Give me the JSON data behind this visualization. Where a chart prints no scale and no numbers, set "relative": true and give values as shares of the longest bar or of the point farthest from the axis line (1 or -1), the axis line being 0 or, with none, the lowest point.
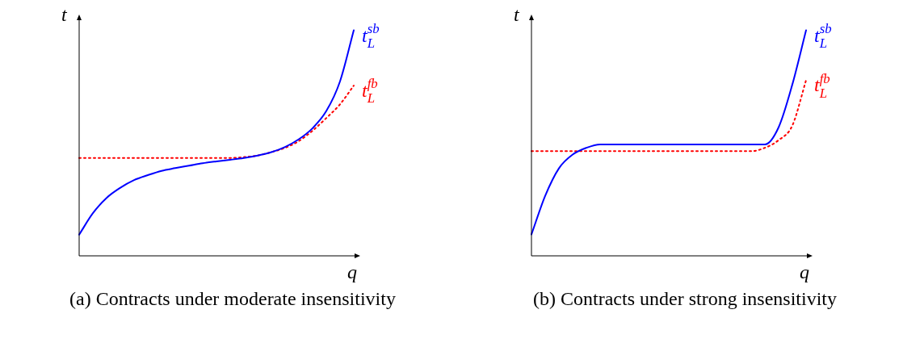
{
  "chart_data": [
    {
      "type": "line",
      "title": "(a) Contracts under moderate insensitivity",
      "xlabel": "q",
      "ylabel": "t",
      "relative": true,
      "legend": false,
      "marker": "none",
      "categories": [
        null,
        null,
        null,
        null,
        null,
        null,
        null,
        null,
        null,
        null,
        null,
        null,
        null,
        null,
        null,
        null,
        null,
        null,
        null,
        null,
        null
      ],
      "series": [
        {
          "name": "t$_{L}$$^{sb}$",
          "color": "#0000ff",
          "line_style": "solid",
          "values": [
            0.094,
            0.189,
            0.257,
            0.302,
            0.336,
            0.358,
            0.377,
            0.389,
            0.4,
            0.411,
            0.419,
            0.426,
            0.434,
            0.445,
            0.46,
            0.483,
            0.517,
            0.566,
            0.642,
            0.774,
            1
          ]
        },
        {
          "name": "t$_{L}$$^{fb}$",
          "color": "#ff0000",
          "line_style": "dotted",
          "values": [
            0.434,
            0.434,
            0.434,
            0.434,
            0.434,
            0.434,
            0.434,
            0.434,
            0.434,
            0.434,
            0.434,
            0.434,
            0.438,
            0.445,
            0.46,
            0.479,
            0.509,
            0.555,
            0.611,
            0.672,
            0.755
          ]
        }
      ]
    },
    {
      "type": "line",
      "title": "(b) Contracts under strong insensitivity",
      "xlabel": "q",
      "ylabel": "t",
      "relative": true,
      "legend": false,
      "marker": "none",
      "categories": [
        null,
        null,
        null,
        null,
        null,
        null,
        null,
        null,
        null,
        null,
        null,
        null,
        null,
        null,
        null,
        null,
        null,
        null,
        null,
        null,
        null
      ],
      "series": [
        {
          "name": "t$_{L}$$^{sb}$",
          "color": "#0000ff",
          "line_style": "solid",
          "values": [
            0.095,
            0.266,
            0.388,
            0.449,
            0.479,
            0.494,
            0.494,
            0.494,
            0.494,
            0.494,
            0.494,
            0.494,
            0.494,
            0.494,
            0.494,
            0.494,
            0.494,
            0.494,
            0.57,
            0.76,
            1
          ]
        },
        {
          "name": "t$_{L}$$^{fb}$",
          "color": "#ff0000",
          "line_style": "dotted",
          "values": [
            0.464,
            0.464,
            0.464,
            0.464,
            0.464,
            0.464,
            0.464,
            0.464,
            0.464,
            0.464,
            0.464,
            0.464,
            0.464,
            0.464,
            0.464,
            0.464,
            0.464,
            0.479,
            0.513,
            0.578,
            0.779
          ]
        }
      ]
    }
  ]
}
